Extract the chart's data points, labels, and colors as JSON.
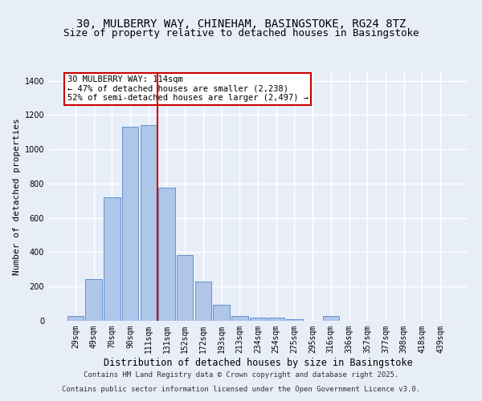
{
  "title_line1": "30, MULBERRY WAY, CHINEHAM, BASINGSTOKE, RG24 8TZ",
  "title_line2": "Size of property relative to detached houses in Basingstoke",
  "xlabel": "Distribution of detached houses by size in Basingstoke",
  "ylabel": "Number of detached properties",
  "categories": [
    "29sqm",
    "49sqm",
    "70sqm",
    "90sqm",
    "111sqm",
    "131sqm",
    "152sqm",
    "172sqm",
    "193sqm",
    "213sqm",
    "234sqm",
    "254sqm",
    "275sqm",
    "295sqm",
    "316sqm",
    "336sqm",
    "357sqm",
    "377sqm",
    "398sqm",
    "418sqm",
    "439sqm"
  ],
  "bar_values": [
    30,
    245,
    720,
    1130,
    1140,
    775,
    385,
    228,
    95,
    30,
    20,
    17,
    10,
    0,
    28,
    0,
    0,
    0,
    0,
    0,
    0
  ],
  "bar_color": "#aec6e8",
  "bar_edge_color": "#5586c8",
  "background_color": "#e8eef8",
  "grid_color": "#ffffff",
  "red_line_x": 4.5,
  "red_line_color": "#cc0000",
  "annotation_text": "30 MULBERRY WAY: 114sqm\n← 47% of detached houses are smaller (2,238)\n52% of semi-detached houses are larger (2,497) →",
  "annotation_box_color": "#ffffff",
  "annotation_box_edge": "#cc0000",
  "ylim": [
    0,
    1450
  ],
  "yticks": [
    0,
    200,
    400,
    600,
    800,
    1000,
    1200,
    1400
  ],
  "footer_line1": "Contains HM Land Registry data © Crown copyright and database right 2025.",
  "footer_line2": "Contains public sector information licensed under the Open Government Licence v3.0.",
  "title_fontsize": 10,
  "subtitle_fontsize": 9,
  "ylabel_fontsize": 8,
  "xlabel_fontsize": 8.5,
  "tick_fontsize": 7,
  "annotation_fontsize": 7.5,
  "footer_fontsize": 6.5
}
